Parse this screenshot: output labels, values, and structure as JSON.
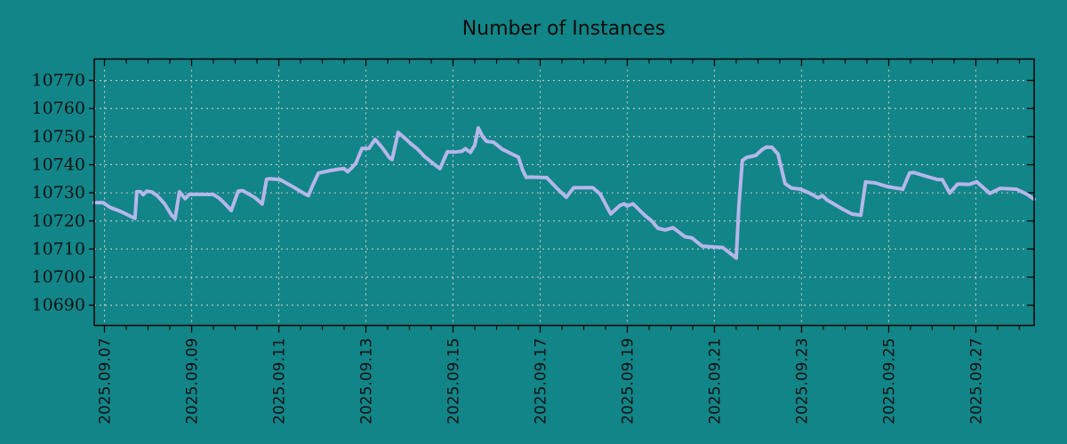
{
  "chart_data": {
    "type": "line",
    "title": "Number of Instances",
    "grid": true,
    "legend": "none",
    "colors": {
      "background": "#118588",
      "line": "#b6b6ea",
      "grid": "#c9c9c9",
      "axis": "#000000",
      "text": "#111111"
    },
    "x_axis": {
      "unit": "days since 2025.09.07",
      "lim": [
        -0.235,
        21.337
      ],
      "minor_tick_step": 0.5,
      "major_ticks": [
        {
          "day": 0,
          "label": "2025.09.07"
        },
        {
          "day": 2,
          "label": "2025.09.09"
        },
        {
          "day": 4,
          "label": "2025.09.11"
        },
        {
          "day": 6,
          "label": "2025.09.13"
        },
        {
          "day": 8,
          "label": "2025.09.15"
        },
        {
          "day": 10,
          "label": "2025.09.17"
        },
        {
          "day": 12,
          "label": "2025.09.19"
        },
        {
          "day": 14,
          "label": "2025.09.21"
        },
        {
          "day": 16,
          "label": "2025.09.23"
        },
        {
          "day": 18,
          "label": "2025.09.25"
        },
        {
          "day": 20,
          "label": "2025.09.27"
        }
      ]
    },
    "y_axis": {
      "lim": [
        10682.8,
        10777.6
      ],
      "tick_values": [
        10690,
        10700,
        10710,
        10720,
        10730,
        10740,
        10750,
        10760,
        10770
      ]
    },
    "series": [
      {
        "name": "instances",
        "points": [
          [
            -0.235,
            10726.5
          ],
          [
            -0.03,
            10726.5
          ],
          [
            0.13,
            10724.8
          ],
          [
            0.38,
            10723.3
          ],
          [
            0.58,
            10721.8
          ],
          [
            0.7,
            10720.9
          ],
          [
            0.74,
            10730.4
          ],
          [
            0.83,
            10730.4
          ],
          [
            0.89,
            10729.3
          ],
          [
            0.97,
            10730.6
          ],
          [
            1.09,
            10730.3
          ],
          [
            1.21,
            10729.0
          ],
          [
            1.38,
            10726.1
          ],
          [
            1.54,
            10722.0
          ],
          [
            1.62,
            10720.8
          ],
          [
            1.72,
            10730.4
          ],
          [
            1.85,
            10727.9
          ],
          [
            1.95,
            10729.5
          ],
          [
            2.5,
            10729.4
          ],
          [
            2.64,
            10728.0
          ],
          [
            2.74,
            10726.5
          ],
          [
            2.85,
            10724.7
          ],
          [
            2.91,
            10723.7
          ],
          [
            3.07,
            10730.6
          ],
          [
            3.17,
            10730.8
          ],
          [
            3.32,
            10729.5
          ],
          [
            3.46,
            10728.2
          ],
          [
            3.62,
            10726.0
          ],
          [
            3.72,
            10734.8
          ],
          [
            3.79,
            10735.0
          ],
          [
            4.03,
            10734.7
          ],
          [
            4.34,
            10732.0
          ],
          [
            4.58,
            10729.8
          ],
          [
            4.68,
            10729.0
          ],
          [
            4.79,
            10733.0
          ],
          [
            4.91,
            10737.0
          ],
          [
            5.15,
            10737.8
          ],
          [
            5.36,
            10738.4
          ],
          [
            5.5,
            10738.6
          ],
          [
            5.58,
            10737.5
          ],
          [
            5.66,
            10738.6
          ],
          [
            5.77,
            10740.5
          ],
          [
            5.91,
            10745.8
          ],
          [
            6.07,
            10745.8
          ],
          [
            6.21,
            10749.0
          ],
          [
            6.38,
            10746.0
          ],
          [
            6.54,
            10742.5
          ],
          [
            6.6,
            10741.8
          ],
          [
            6.74,
            10751.5
          ],
          [
            6.89,
            10749.5
          ],
          [
            7.03,
            10747.5
          ],
          [
            7.19,
            10745.5
          ],
          [
            7.34,
            10743.0
          ],
          [
            7.54,
            10740.5
          ],
          [
            7.7,
            10738.6
          ],
          [
            7.87,
            10744.6
          ],
          [
            8.05,
            10744.5
          ],
          [
            8.21,
            10744.8
          ],
          [
            8.28,
            10745.7
          ],
          [
            8.4,
            10744.4
          ],
          [
            8.5,
            10747.0
          ],
          [
            8.58,
            10753.1
          ],
          [
            8.68,
            10750.0
          ],
          [
            8.77,
            10748.3
          ],
          [
            8.93,
            10748.0
          ],
          [
            9.13,
            10745.5
          ],
          [
            9.38,
            10743.6
          ],
          [
            9.5,
            10742.7
          ],
          [
            9.6,
            10738.0
          ],
          [
            9.68,
            10735.5
          ],
          [
            9.77,
            10735.6
          ],
          [
            10.15,
            10735.4
          ],
          [
            10.36,
            10732.0
          ],
          [
            10.56,
            10729.0
          ],
          [
            10.6,
            10728.4
          ],
          [
            10.77,
            10731.8
          ],
          [
            11.21,
            10731.8
          ],
          [
            11.38,
            10729.5
          ],
          [
            11.62,
            10722.5
          ],
          [
            11.83,
            10725.5
          ],
          [
            11.93,
            10726.1
          ],
          [
            11.99,
            10725.3
          ],
          [
            12.13,
            10726.1
          ],
          [
            12.4,
            10722.0
          ],
          [
            12.56,
            10720.0
          ],
          [
            12.7,
            10717.4
          ],
          [
            12.87,
            10716.8
          ],
          [
            13.05,
            10717.6
          ],
          [
            13.32,
            10714.4
          ],
          [
            13.48,
            10714.0
          ],
          [
            13.72,
            10711.0
          ],
          [
            14.19,
            10710.5
          ],
          [
            14.38,
            10708.3
          ],
          [
            14.5,
            10706.8
          ],
          [
            14.56,
            10725.0
          ],
          [
            14.64,
            10741.5
          ],
          [
            14.74,
            10742.6
          ],
          [
            14.95,
            10743.3
          ],
          [
            15.09,
            10745.3
          ],
          [
            15.19,
            10746.3
          ],
          [
            15.32,
            10746.2
          ],
          [
            15.46,
            10743.8
          ],
          [
            15.62,
            10733.3
          ],
          [
            15.77,
            10731.7
          ],
          [
            15.97,
            10731.3
          ],
          [
            16.17,
            10730.0
          ],
          [
            16.38,
            10728.2
          ],
          [
            16.48,
            10729.0
          ],
          [
            16.58,
            10727.5
          ],
          [
            16.93,
            10724.3
          ],
          [
            17.15,
            10722.5
          ],
          [
            17.36,
            10722.0
          ],
          [
            17.47,
            10733.9
          ],
          [
            17.7,
            10733.5
          ],
          [
            17.95,
            10732.3
          ],
          [
            18.11,
            10731.8
          ],
          [
            18.26,
            10731.5
          ],
          [
            18.32,
            10731.2
          ],
          [
            18.48,
            10737.1
          ],
          [
            18.58,
            10737.2
          ],
          [
            18.83,
            10736.0
          ],
          [
            19.13,
            10734.7
          ],
          [
            19.23,
            10734.7
          ],
          [
            19.4,
            10729.9
          ],
          [
            19.58,
            10733.1
          ],
          [
            19.85,
            10733.0
          ],
          [
            20.02,
            10733.9
          ],
          [
            20.1,
            10732.8
          ],
          [
            20.32,
            10729.8
          ],
          [
            20.56,
            10731.6
          ],
          [
            20.93,
            10731.3
          ],
          [
            21.17,
            10729.5
          ],
          [
            21.337,
            10727.7
          ]
        ]
      }
    ]
  }
}
